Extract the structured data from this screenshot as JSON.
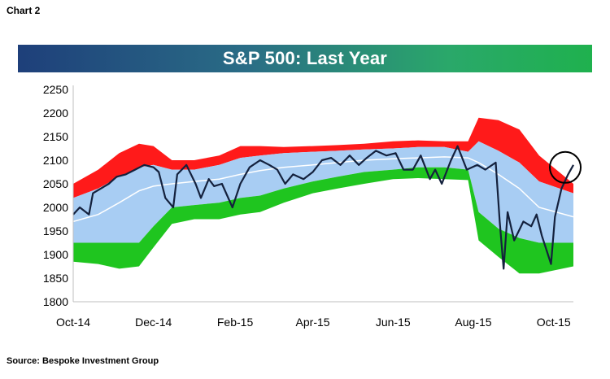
{
  "header": {
    "chart_label": "Chart 2"
  },
  "footer": {
    "source": "Source: Bespoke Investment Group"
  },
  "colors": {
    "upper_band": "#ff1a1a",
    "upper_mid_band": "#a8cdf3",
    "lower_mid_band": "#a8cdf3",
    "lower_band": "#1fc51f",
    "moving_average": "#ffffff",
    "price": "#14213d",
    "highlight_circle": "#000000"
  },
  "chart_data": {
    "type": "area",
    "title": "S&P 500: Last Year",
    "xlabel": "",
    "ylabel": "",
    "ylim": [
      1800,
      2250
    ],
    "yticks": [
      1800,
      1850,
      1900,
      1950,
      2000,
      2050,
      2100,
      2150,
      2200,
      2250
    ],
    "xlim": [
      "2014-10-01",
      "2015-10-16"
    ],
    "xticks": [
      {
        "date": "2014-10-01",
        "label": "Oct-14"
      },
      {
        "date": "2014-12-01",
        "label": "Dec-14"
      },
      {
        "date": "2015-02-01",
        "label": "Feb-15"
      },
      {
        "date": "2015-04-01",
        "label": "Apr-15"
      },
      {
        "date": "2015-06-01",
        "label": "Jun-15"
      },
      {
        "date": "2015-08-01",
        "label": "Aug-15"
      },
      {
        "date": "2015-10-01",
        "label": "Oct-15"
      }
    ],
    "grid": false,
    "bands": {
      "dates": [
        "2014-10-01",
        "2014-10-20",
        "2014-11-05",
        "2014-11-20",
        "2014-12-01",
        "2014-12-15",
        "2015-01-01",
        "2015-01-20",
        "2015-02-05",
        "2015-02-20",
        "2015-03-10",
        "2015-04-01",
        "2015-04-20",
        "2015-05-10",
        "2015-06-01",
        "2015-06-20",
        "2015-07-10",
        "2015-07-28",
        "2015-08-05",
        "2015-08-20",
        "2015-09-05",
        "2015-09-20",
        "2015-10-16"
      ],
      "upper_outer": [
        2050,
        2080,
        2115,
        2135,
        2130,
        2100,
        2100,
        2110,
        2130,
        2130,
        2128,
        2130,
        2132,
        2135,
        2140,
        2142,
        2140,
        2140,
        2190,
        2185,
        2165,
        2110,
        2050
      ],
      "upper_inner": [
        2020,
        2040,
        2065,
        2085,
        2090,
        2080,
        2080,
        2090,
        2105,
        2110,
        2115,
        2118,
        2120,
        2123,
        2125,
        2128,
        2128,
        2118,
        2140,
        2120,
        2095,
        2055,
        2030
      ],
      "moving_average": [
        1970,
        1985,
        2010,
        2035,
        2045,
        2050,
        2055,
        2060,
        2070,
        2078,
        2085,
        2090,
        2095,
        2100,
        2103,
        2105,
        2107,
        2105,
        2095,
        2070,
        2040,
        2000,
        1980
      ],
      "lower_inner": [
        1925,
        1925,
        1925,
        1925,
        1960,
        2000,
        2005,
        2010,
        2020,
        2025,
        2040,
        2055,
        2065,
        2075,
        2080,
        2085,
        2085,
        2080,
        1990,
        1955,
        1935,
        1925,
        1925
      ],
      "lower_outer": [
        1885,
        1880,
        1870,
        1875,
        1915,
        1965,
        1975,
        1975,
        1985,
        1990,
        2010,
        2030,
        2040,
        2050,
        2060,
        2062,
        2060,
        2058,
        1930,
        1895,
        1860,
        1860,
        1875
      ]
    },
    "series": [
      {
        "values_dates": [
          "2014-10-01",
          "2014-10-06",
          "2014-10-13",
          "2014-10-16",
          "2014-10-22",
          "2014-10-28",
          "2014-11-03",
          "2014-11-10",
          "2014-11-17",
          "2014-11-24",
          "2014-12-01",
          "2014-12-05",
          "2014-12-10",
          "2014-12-16",
          "2014-12-19",
          "2014-12-26",
          "2015-01-02",
          "2015-01-06",
          "2015-01-12",
          "2015-01-16",
          "2015-01-22",
          "2015-01-30",
          "2015-02-05",
          "2015-02-12",
          "2015-02-20",
          "2015-02-27",
          "2015-03-05",
          "2015-03-11",
          "2015-03-17",
          "2015-03-25",
          "2015-04-01",
          "2015-04-08",
          "2015-04-15",
          "2015-04-22",
          "2015-04-29",
          "2015-05-06",
          "2015-05-12",
          "2015-05-19",
          "2015-05-27",
          "2015-06-03",
          "2015-06-09",
          "2015-06-16",
          "2015-06-22",
          "2015-06-29",
          "2015-07-03",
          "2015-07-08",
          "2015-07-15",
          "2015-07-20",
          "2015-07-27",
          "2015-08-04",
          "2015-08-10",
          "2015-08-18",
          "2015-08-21",
          "2015-08-24",
          "2015-08-27",
          "2015-09-01",
          "2015-09-08",
          "2015-09-14",
          "2015-09-18",
          "2015-09-22",
          "2015-09-29",
          "2015-10-02",
          "2015-10-07",
          "2015-10-12",
          "2015-10-16"
        ],
        "values": [
          1985,
          2000,
          1985,
          2030,
          2040,
          2050,
          2065,
          2070,
          2080,
          2090,
          2085,
          2075,
          2020,
          2000,
          2070,
          2090,
          2050,
          2020,
          2060,
          2045,
          2050,
          2000,
          2050,
          2085,
          2100,
          2090,
          2080,
          2050,
          2070,
          2060,
          2075,
          2100,
          2105,
          2090,
          2110,
          2090,
          2105,
          2120,
          2110,
          2115,
          2080,
          2080,
          2110,
          2060,
          2080,
          2050,
          2100,
          2130,
          2080,
          2090,
          2080,
          2095,
          1970,
          1870,
          1990,
          1930,
          1970,
          1960,
          1985,
          1940,
          1880,
          1980,
          2040,
          2070,
          2090
        ]
      }
    ],
    "annotation": {
      "type": "circle",
      "date": "2015-10-16",
      "value": 2090
    }
  }
}
